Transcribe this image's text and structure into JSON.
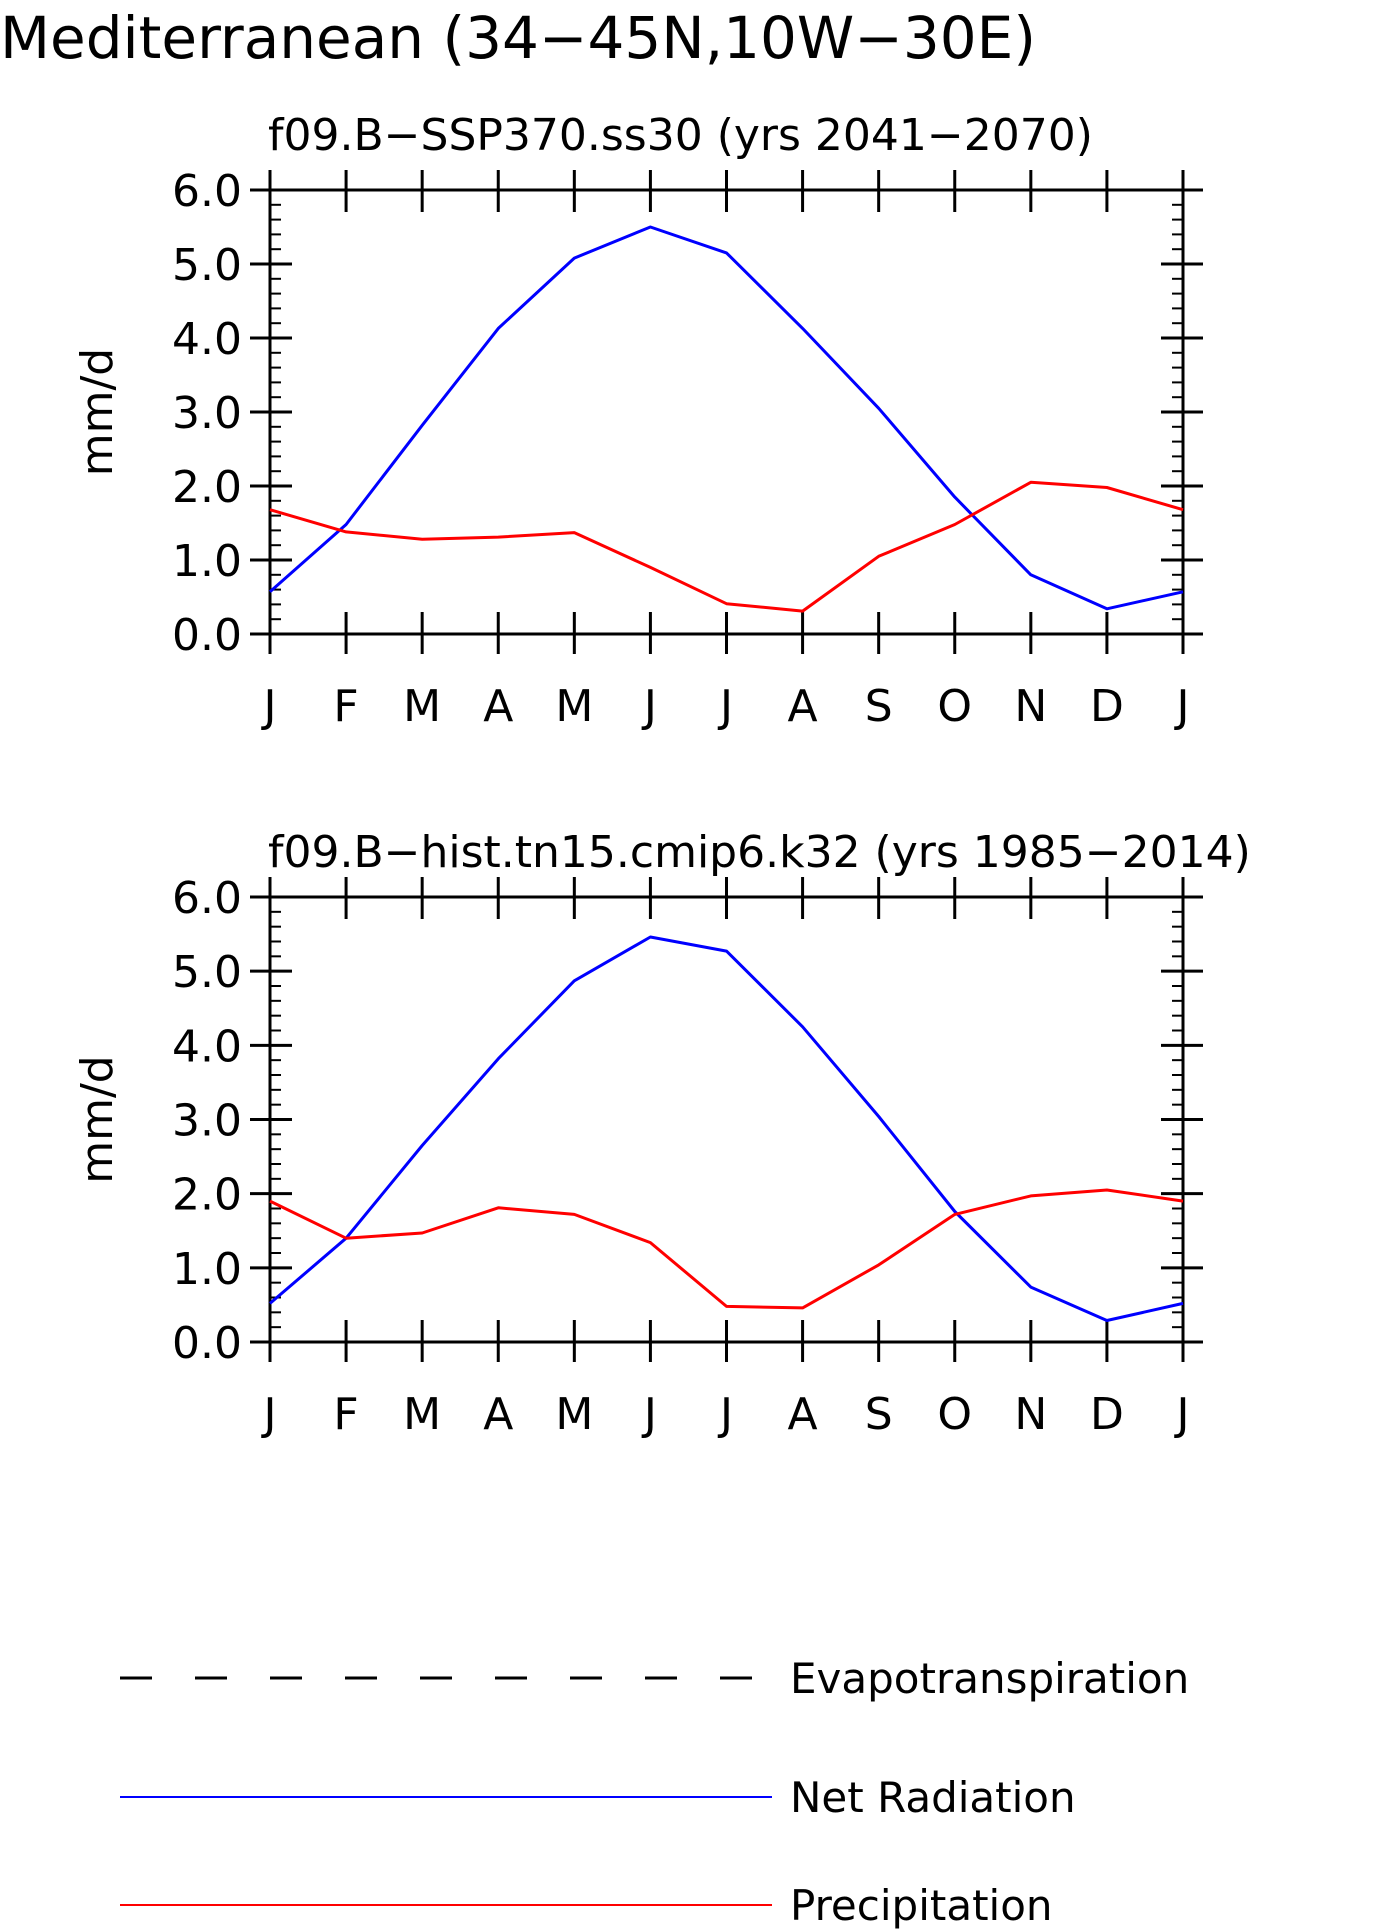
{
  "figure_title": "Mediterranean (34−45N,10W−30E)",
  "colors": {
    "net_radiation": "#0000ff",
    "precipitation": "#ff0000",
    "evapotranspiration": "#000000",
    "axes": "#000000"
  },
  "legend": {
    "items": [
      {
        "label": "Evapotranspiration",
        "style": "dashed",
        "color": "#000000"
      },
      {
        "label": "Net Radiation",
        "style": "solid",
        "color": "#0000ff"
      },
      {
        "label": "Precipitation",
        "style": "solid",
        "color": "#ff0000"
      }
    ]
  },
  "chart_data": [
    {
      "type": "line",
      "title": "f09.B−SSP370.ss30 (yrs 2041−2070)",
      "xlabel": "",
      "ylabel": "mm/d",
      "ylim": [
        0,
        6
      ],
      "yticks": [
        "0.0",
        "1.0",
        "2.0",
        "3.0",
        "4.0",
        "5.0",
        "6.0"
      ],
      "categories": [
        "J",
        "F",
        "M",
        "A",
        "M",
        "J",
        "J",
        "A",
        "S",
        "O",
        "N",
        "D",
        "J"
      ],
      "grid": false,
      "series": [
        {
          "name": "Net Radiation",
          "color": "#0000ff",
          "values": [
            0.57,
            1.48,
            2.82,
            4.13,
            5.08,
            5.5,
            5.15,
            4.13,
            3.05,
            1.85,
            0.8,
            0.34,
            0.57
          ]
        },
        {
          "name": "Precipitation",
          "color": "#ff0000",
          "values": [
            1.68,
            1.38,
            1.28,
            1.31,
            1.37,
            0.9,
            0.41,
            0.31,
            1.05,
            1.48,
            2.05,
            1.98,
            1.68
          ]
        }
      ]
    },
    {
      "type": "line",
      "title": "f09.B−hist.tn15.cmip6.k32 (yrs 1985−2014)",
      "xlabel": "",
      "ylabel": "mm/d",
      "ylim": [
        0,
        6
      ],
      "yticks": [
        "0.0",
        "1.0",
        "2.0",
        "3.0",
        "4.0",
        "5.0",
        "6.0"
      ],
      "categories": [
        "J",
        "F",
        "M",
        "A",
        "M",
        "J",
        "J",
        "A",
        "S",
        "O",
        "N",
        "D",
        "J"
      ],
      "grid": false,
      "series": [
        {
          "name": "Net Radiation",
          "color": "#0000ff",
          "values": [
            0.52,
            1.4,
            2.65,
            3.82,
            4.87,
            5.46,
            5.27,
            4.25,
            3.04,
            1.76,
            0.74,
            0.29,
            0.52
          ]
        },
        {
          "name": "Precipitation",
          "color": "#ff0000",
          "values": [
            1.9,
            1.4,
            1.47,
            1.81,
            1.72,
            1.34,
            0.48,
            0.46,
            1.04,
            1.72,
            1.97,
            2.05,
            1.9
          ]
        }
      ]
    }
  ]
}
